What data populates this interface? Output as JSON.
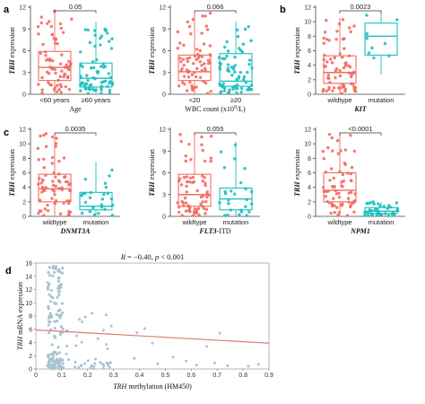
{
  "colors": {
    "salmon": "#f26b60",
    "teal": "#1bbfbf",
    "scatter": "#a9c3d1",
    "fit": "#e07b70"
  },
  "chart_data": [
    {
      "id": "a1",
      "type": "box",
      "panel": "a",
      "ylabel_gene": "TRH",
      "ylabel_rest": " expression",
      "xtitle_parts": [
        {
          "t": "Age",
          "i": false
        }
      ],
      "categories": [
        "<60 years",
        "≥60 years"
      ],
      "ylim": [
        0,
        12
      ],
      "yticks": [
        0,
        3,
        6,
        9,
        12
      ],
      "yticks_labels": [
        "0",
        "3",
        "6",
        "9",
        "12"
      ],
      "pvalue": "0.05",
      "boxes": [
        {
          "q1": 1.9,
          "median": 3.7,
          "q3": 5.9,
          "min": 0.1,
          "max": 11.5
        },
        {
          "q1": 1.0,
          "median": 2.2,
          "q3": 4.3,
          "min": 0.1,
          "max": 10.0
        }
      ]
    },
    {
      "id": "a2",
      "type": "box",
      "panel": "",
      "ylabel_gene": "TRH",
      "ylabel_rest": " expression",
      "xtitle_parts": [
        {
          "t": "WBC count (x10",
          "i": false
        },
        {
          "t": "9",
          "i": false,
          "sup": true
        },
        {
          "t": "/L)",
          "i": false
        }
      ],
      "categories": [
        "<20",
        "≥20"
      ],
      "ylim": [
        0,
        12
      ],
      "yticks": [
        0,
        3,
        6,
        9,
        12
      ],
      "yticks_labels": [
        "0",
        "3",
        "6",
        "9",
        "12"
      ],
      "pvalue": "0.066",
      "boxes": [
        {
          "q1": 1.9,
          "median": 3.1,
          "q3": 5.4,
          "min": 0.1,
          "max": 11.4
        },
        {
          "q1": 1.1,
          "median": 1.8,
          "q3": 5.6,
          "min": 0.1,
          "max": 10.0
        }
      ]
    },
    {
      "id": "b",
      "type": "box",
      "panel": "b",
      "ylabel_gene": "TRH",
      "ylabel_rest": " expression",
      "xtitle_parts": [
        {
          "t": "KIT",
          "i": true
        }
      ],
      "categories": [
        "wildtype",
        "mutation"
      ],
      "ylim": [
        0,
        12
      ],
      "yticks": [
        0,
        2,
        4,
        6,
        8,
        10,
        12
      ],
      "yticks_labels": [
        "0",
        "2",
        "4",
        "6",
        "8",
        "10",
        "12"
      ],
      "pvalue": "0.0023",
      "boxes": [
        {
          "q1": 1.5,
          "median": 3.0,
          "q3": 5.3,
          "min": 0.1,
          "max": 10.5
        },
        {
          "q1": 5.4,
          "median": 8.0,
          "q3": 9.8,
          "min": 2.7,
          "max": 11.4
        }
      ]
    },
    {
      "id": "c1",
      "type": "box",
      "panel": "c",
      "ylabel_gene": "TRH",
      "ylabel_rest": " expression",
      "xtitle_parts": [
        {
          "t": "DNMT3A",
          "i": true
        }
      ],
      "categories": [
        "wildtype",
        "mutation"
      ],
      "ylim": [
        0,
        12
      ],
      "yticks": [
        0,
        2,
        4,
        6,
        8,
        10,
        12
      ],
      "yticks_labels": [
        "0",
        "2",
        "4",
        "6",
        "8",
        "10",
        "12"
      ],
      "pvalue": "0.0035",
      "boxes": [
        {
          "q1": 2.0,
          "median": 3.8,
          "q3": 5.8,
          "min": 0.1,
          "max": 11.5
        },
        {
          "q1": 0.9,
          "median": 1.4,
          "q3": 3.3,
          "min": 0.1,
          "max": 7.5
        }
      ]
    },
    {
      "id": "c2",
      "type": "box",
      "panel": "",
      "ylabel_gene": "TRH",
      "ylabel_rest": " expression",
      "xtitle_parts": [
        {
          "t": "FLT3",
          "i": true
        },
        {
          "t": "-ITD",
          "i": false
        }
      ],
      "categories": [
        "wildtype",
        "mutation"
      ],
      "ylim": [
        0,
        12
      ],
      "yticks": [
        0,
        3,
        6,
        9,
        12
      ],
      "yticks_labels": [
        "0",
        "3",
        "6",
        "9",
        "12"
      ],
      "pvalue": "0.055",
      "boxes": [
        {
          "q1": 1.4,
          "median": 3.0,
          "q3": 5.8,
          "min": 0.1,
          "max": 11.6
        },
        {
          "q1": 0.9,
          "median": 2.4,
          "q3": 3.9,
          "min": 0.1,
          "max": 10.3
        }
      ]
    },
    {
      "id": "c3",
      "type": "box",
      "panel": "",
      "ylabel_gene": "TRH",
      "ylabel_rest": " expression",
      "xtitle_parts": [
        {
          "t": "NPM1",
          "i": true
        }
      ],
      "categories": [
        "wildtype",
        "mutation"
      ],
      "ylim": [
        0,
        12
      ],
      "yticks": [
        0,
        2,
        4,
        6,
        8,
        10,
        12
      ],
      "yticks_labels": [
        "0",
        "2",
        "4",
        "6",
        "8",
        "10",
        "12"
      ],
      "pvalue": "<0.0001",
      "boxes": [
        {
          "q1": 2.0,
          "median": 3.6,
          "q3": 6.0,
          "min": 0.1,
          "max": 11.6
        },
        {
          "q1": 0.4,
          "median": 0.7,
          "q3": 1.2,
          "min": 0.1,
          "max": 2.0
        }
      ]
    },
    {
      "id": "d",
      "type": "scatter",
      "panel": "d",
      "ylabel_gene": "TRH",
      "ylabel_rest": " mRNA expression",
      "xlabel_gene": "TRH",
      "xlabel_rest": " methylation (HM450)",
      "xlim": [
        0,
        0.9
      ],
      "ylim": [
        0,
        16
      ],
      "xticks": [
        0,
        0.1,
        0.2,
        0.3,
        0.4,
        0.5,
        0.6,
        0.7,
        0.8,
        0.9
      ],
      "xticks_labels": [
        "0",
        "0.1",
        "0.2",
        "0.3",
        "0.4",
        "0.5",
        "0.6",
        "0.7",
        "0.8",
        "0.9"
      ],
      "yticks": [
        0,
        2,
        4,
        6,
        8,
        10,
        12,
        14,
        16
      ],
      "yticks_labels": [
        "0",
        "2",
        "4",
        "6",
        "8",
        "10",
        "12",
        "14",
        "16"
      ],
      "stat_r": "R",
      "stat_rest": " = −0.40, ",
      "stat_p": "p",
      "stat_prest": " < 0.001",
      "fit": {
        "x": [
          0.0,
          0.9
        ],
        "y": [
          5.9,
          3.9
        ]
      }
    }
  ]
}
